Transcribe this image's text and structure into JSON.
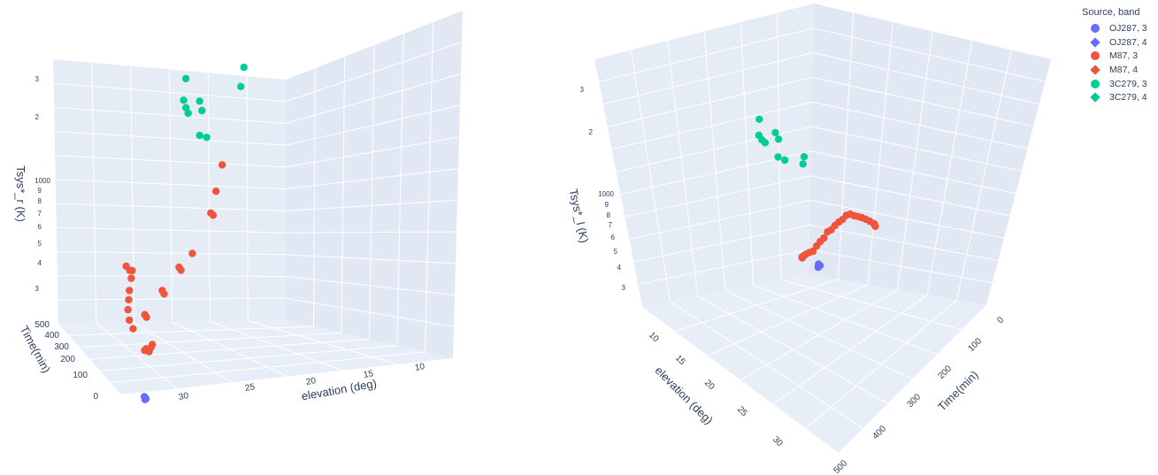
{
  "legend": {
    "title": "Source, band",
    "items": [
      {
        "label": "OJ287, 3",
        "color": "#636efa",
        "symbol": "circle"
      },
      {
        "label": "OJ287, 4",
        "color": "#636efa",
        "symbol": "diamond"
      },
      {
        "label": "M87, 3",
        "color": "#ef553b",
        "symbol": "circle"
      },
      {
        "label": "M87, 4",
        "color": "#ef553b",
        "symbol": "diamond"
      },
      {
        "label": "3C279, 3",
        "color": "#00cc96",
        "symbol": "circle"
      },
      {
        "label": "3C279, 4",
        "color": "#00cc96",
        "symbol": "diamond"
      }
    ]
  },
  "colors": {
    "pane_wall": "#e5ecf6",
    "pane_wall_dark": "#dde5f1",
    "grid": "#ffffff",
    "text": "#2a3f5f"
  },
  "chart_data": [
    {
      "type": "scatter",
      "view": "left",
      "xlabel": "elevation (deg)",
      "ylabel": "Time(min)",
      "zlabel": "Tsys*_r (K)",
      "elevation_ticks": [
        "30",
        "25",
        "20",
        "15",
        "10"
      ],
      "time_ticks": [
        "0",
        "100",
        "200",
        "300",
        "400",
        "500"
      ],
      "tsys_ticks": [
        "3",
        "4",
        "5",
        "6",
        "7",
        "8",
        "9",
        "1000",
        "2",
        "3"
      ],
      "zscale": "log",
      "series": [
        {
          "name": "OJ287, 3",
          "points": [
            [
              33,
              5,
              230
            ],
            [
              33,
              10,
              235
            ],
            [
              32.8,
              15,
              228
            ]
          ]
        },
        {
          "name": "M87, 3",
          "points": [
            [
              32,
              80,
              340
            ],
            [
              32,
              90,
              330
            ],
            [
              31.5,
              100,
              320
            ],
            [
              31,
              115,
              335
            ],
            [
              31,
              125,
              320
            ],
            [
              32.5,
              130,
              390
            ],
            [
              32.7,
              140,
              420
            ],
            [
              32.7,
              150,
              460
            ],
            [
              32.5,
              160,
              500
            ],
            [
              32.3,
              170,
              540
            ],
            [
              32,
              180,
              600
            ],
            [
              32,
              190,
              640
            ],
            [
              32.2,
              200,
              660
            ],
            [
              31.5,
              210,
              620
            ],
            [
              30,
              220,
              380
            ],
            [
              30,
              230,
              385
            ],
            [
              28,
              240,
              460
            ],
            [
              28,
              250,
              470
            ],
            [
              26,
              260,
              560
            ],
            [
              26,
              270,
              570
            ],
            [
              24.5,
              280,
              640
            ],
            [
              22,
              300,
              900
            ],
            [
              22,
              310,
              910
            ],
            [
              21,
              330,
              1100
            ],
            [
              20,
              345,
              1400
            ]
          ]
        },
        {
          "name": "3C279, 3",
          "points": [
            [
              21,
              370,
              1800
            ],
            [
              21.5,
              380,
              1820
            ],
            [
              21,
              390,
              2300
            ],
            [
              21,
              400,
              2500
            ],
            [
              22,
              410,
              2200
            ],
            [
              22,
              420,
              2300
            ],
            [
              22,
              430,
              2450
            ],
            [
              21.5,
              440,
              3000
            ],
            [
              15,
              450,
              2700
            ],
            [
              14,
              470,
              3200
            ]
          ]
        }
      ]
    },
    {
      "type": "scatter",
      "view": "right",
      "xlabel": "elevation (deg)",
      "ylabel": "Time(min)",
      "zlabel": "Tsys*_l (K)",
      "elevation_ticks": [
        "10",
        "15",
        "20",
        "25",
        "30"
      ],
      "time_ticks": [
        "0",
        "100",
        "200",
        "300",
        "400",
        "500"
      ],
      "tsys_ticks": [
        "3",
        "4",
        "5",
        "6",
        "7",
        "8",
        "9",
        "1000",
        "2",
        "3"
      ],
      "zscale": "log",
      "series": [
        {
          "name": "OJ287, 3",
          "points": [
            [
              33,
              5,
              280
            ],
            [
              33,
              10,
              285
            ],
            [
              32.8,
              15,
              278
            ]
          ]
        },
        {
          "name": "M87, 3",
          "points": [
            [
              32,
              80,
              330
            ],
            [
              31,
              100,
              340
            ],
            [
              30,
              115,
              360
            ],
            [
              29,
              130,
              380
            ],
            [
              28,
              140,
              400
            ],
            [
              27,
              150,
              420
            ],
            [
              26,
              160,
              460
            ],
            [
              25,
              170,
              500
            ],
            [
              24,
              180,
              540
            ],
            [
              23,
              190,
              600
            ],
            [
              22,
              200,
              640
            ],
            [
              21,
              210,
              700
            ],
            [
              20,
              220,
              760
            ],
            [
              19,
              230,
              820
            ],
            [
              18,
              240,
              900
            ],
            [
              17,
              250,
              960
            ],
            [
              16,
              260,
              1000
            ],
            [
              15,
              270,
              1050
            ],
            [
              14,
              280,
              1100
            ],
            [
              13,
              290,
              1150
            ],
            [
              12,
              300,
              1200
            ],
            [
              11,
              310,
              1250
            ],
            [
              10.5,
              320,
              1300
            ],
            [
              10,
              330,
              1350
            ],
            [
              9.5,
              340,
              1400
            ]
          ]
        },
        {
          "name": "3C279, 3",
          "points": [
            [
              21,
              370,
              1800
            ],
            [
              21.5,
              380,
              1850
            ],
            [
              21,
              390,
              2300
            ],
            [
              21,
              400,
              2500
            ],
            [
              22,
              410,
              2200
            ],
            [
              22,
              420,
              2300
            ],
            [
              22,
              430,
              2450
            ],
            [
              21.5,
              440,
              3000
            ],
            [
              15,
              450,
              2700
            ],
            [
              14,
              470,
              3200
            ]
          ]
        }
      ]
    }
  ]
}
